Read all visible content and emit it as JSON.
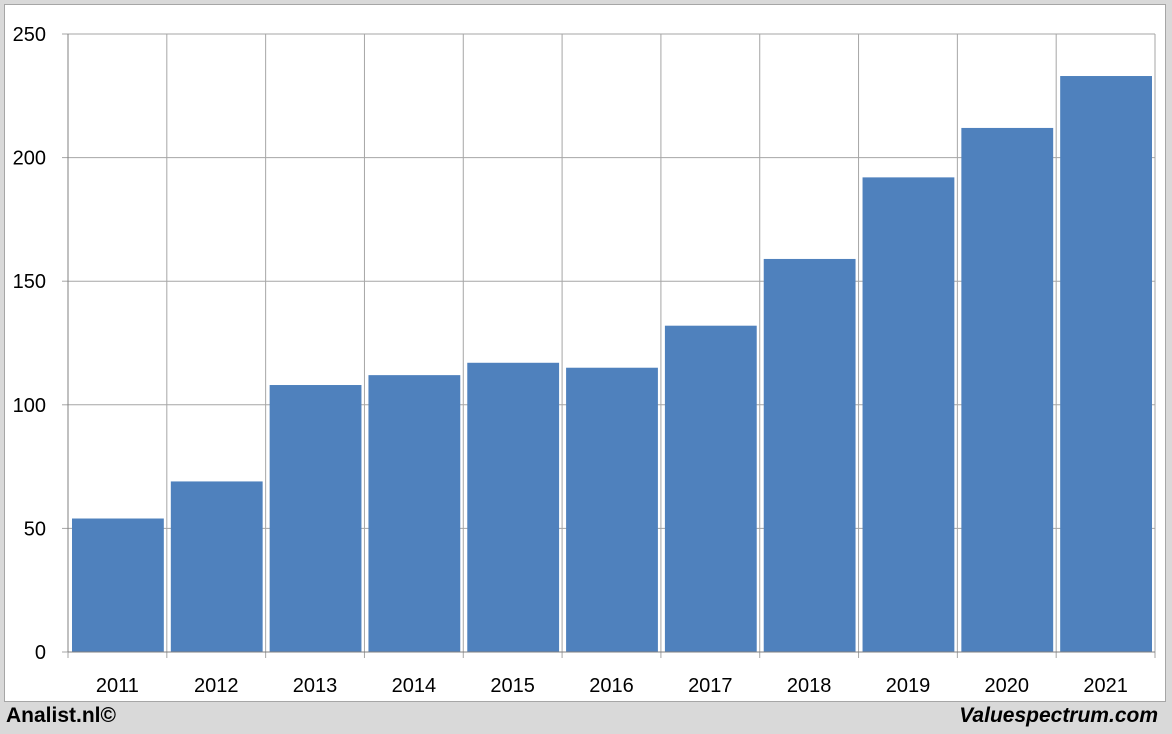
{
  "chart_data": {
    "type": "bar",
    "categories": [
      "2011",
      "2012",
      "2013",
      "2014",
      "2015",
      "2016",
      "2017",
      "2018",
      "2019",
      "2020",
      "2021"
    ],
    "values": [
      54,
      69,
      108,
      112,
      117,
      115,
      132,
      159,
      192,
      212,
      233
    ],
    "title": "",
    "xlabel": "",
    "ylabel": "",
    "ylim": [
      0,
      250
    ],
    "yticks": [
      "0",
      "50",
      "100",
      "150",
      "200",
      "250"
    ],
    "grid": true,
    "legend": "none",
    "bar_color": "#4f81bd",
    "grid_color": "#a6a6a6"
  },
  "footer": {
    "left": "Analist.nl©",
    "right": "Valuespectrum.com"
  }
}
